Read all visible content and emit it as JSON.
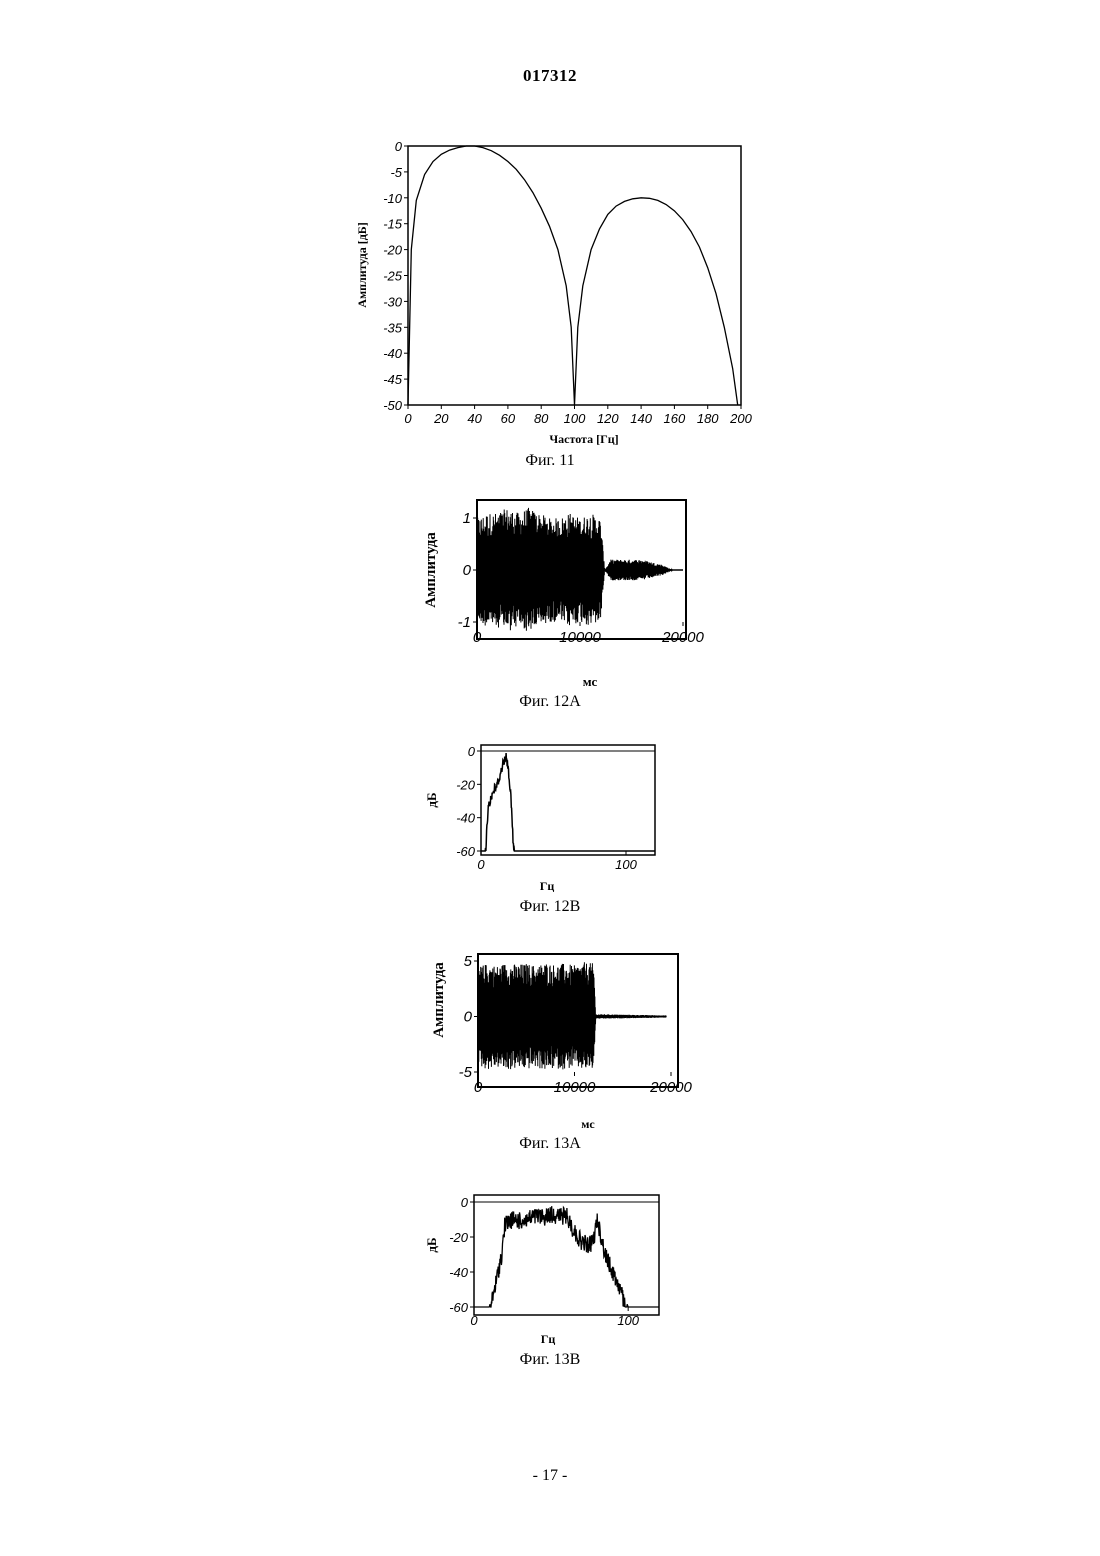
{
  "header": {
    "doc_number": "017312"
  },
  "footer": {
    "page_number": "- 17 -"
  },
  "figures": [
    {
      "caption": "Фиг. 11"
    },
    {
      "caption": "Фиг. 12А"
    },
    {
      "caption": "Фиг. 12В"
    },
    {
      "caption": "Фиг. 13А"
    },
    {
      "caption": "Фиг. 13В"
    }
  ],
  "chart_data": [
    {
      "type": "line",
      "xlabel": "Частота [Гц]",
      "ylabel": "Амплитуда [дБ]",
      "xlim": [
        0,
        200
      ],
      "ylim": [
        -50,
        0
      ],
      "xticks": [
        0,
        20,
        40,
        60,
        80,
        100,
        120,
        140,
        160,
        180,
        200
      ],
      "yticks": [
        0,
        -5,
        -10,
        -15,
        -20,
        -25,
        -30,
        -35,
        -40,
        -45,
        -50
      ],
      "x": [
        0,
        2,
        5,
        10,
        15,
        20,
        25,
        30,
        35,
        40,
        45,
        50,
        55,
        60,
        65,
        70,
        75,
        80,
        85,
        90,
        95,
        98,
        100,
        102,
        105,
        110,
        115,
        120,
        125,
        130,
        135,
        140,
        145,
        150,
        155,
        160,
        165,
        170,
        175,
        180,
        185,
        190,
        195,
        198
      ],
      "y": [
        -50,
        -20,
        -10.5,
        -5.5,
        -3,
        -1.6,
        -0.8,
        -0.3,
        0,
        0,
        -0.3,
        -0.9,
        -1.8,
        -3,
        -4.5,
        -6.5,
        -9,
        -12,
        -15.5,
        -20,
        -27,
        -35,
        -50,
        -35,
        -27,
        -20,
        -16,
        -13.2,
        -11.6,
        -10.7,
        -10.2,
        -10,
        -10.1,
        -10.5,
        -11.3,
        -12.5,
        -14.2,
        -16.5,
        -19.5,
        -23.5,
        -28.5,
        -35,
        -43,
        -50
      ]
    },
    {
      "type": "line",
      "xlabel": "мс",
      "ylabel": "Амплитуда",
      "xlim": [
        0,
        20000
      ],
      "ylim": [
        -1,
        1
      ],
      "xticks": [
        0,
        10000,
        20000
      ],
      "yticks": [
        1,
        0,
        -1
      ],
      "envelope_x": [
        0,
        1000,
        2000,
        3000,
        4000,
        5000,
        6000,
        7000,
        8000,
        9000,
        10000,
        11000,
        12000,
        12400,
        13000,
        14000,
        15000,
        16000,
        17000,
        18000,
        19000,
        20000
      ],
      "envelope_y": [
        1.0,
        1.1,
        1.1,
        1.2,
        1.1,
        1.2,
        1.1,
        1.0,
        1.0,
        1.1,
        1.0,
        1.1,
        1.0,
        0.0,
        0.2,
        0.2,
        0.2,
        0.2,
        0.15,
        0.1,
        0.0,
        0.0
      ]
    },
    {
      "type": "line",
      "xlabel": "Гц",
      "ylabel": "дБ",
      "xlim": [
        0,
        120
      ],
      "ylim": [
        -60,
        0
      ],
      "xticks": [
        0,
        100
      ],
      "yticks": [
        0,
        -20,
        -40,
        -60
      ],
      "x": [
        0,
        3,
        5,
        7,
        9,
        11,
        13,
        15,
        17,
        19,
        21,
        22,
        23,
        25,
        50,
        80,
        120
      ],
      "y": [
        -60,
        -60,
        -30,
        -25,
        -20,
        -18,
        -12,
        -5,
        0,
        -8,
        -30,
        -50,
        -60,
        -60,
        -60,
        -60,
        -60
      ]
    },
    {
      "type": "line",
      "xlabel": "мс",
      "ylabel": "Амплитуда",
      "xlim": [
        0,
        20000
      ],
      "ylim": [
        -5,
        5
      ],
      "xticks": [
        0,
        10000,
        20000
      ],
      "yticks": [
        5,
        0,
        -5
      ],
      "envelope_x": [
        0,
        1000,
        2000,
        3000,
        4000,
        5000,
        6000,
        7000,
        8000,
        9000,
        10000,
        11000,
        12000,
        12200,
        13000,
        16000,
        19500
      ],
      "envelope_y": [
        4.5,
        4.8,
        4.6,
        4.9,
        4.7,
        4.8,
        4.6,
        4.9,
        4.7,
        4.8,
        4.6,
        4.9,
        4.8,
        0.2,
        0.2,
        0.15,
        0.1
      ]
    },
    {
      "type": "line",
      "xlabel": "Гц",
      "ylabel": "дБ",
      "xlim": [
        0,
        120
      ],
      "ylim": [
        -60,
        0
      ],
      "xticks": [
        0,
        100
      ],
      "yticks": [
        0,
        -20,
        -40,
        -60
      ],
      "x": [
        0,
        5,
        10,
        12,
        15,
        18,
        20,
        25,
        30,
        35,
        40,
        45,
        50,
        55,
        60,
        65,
        70,
        75,
        78,
        80,
        85,
        90,
        95,
        98,
        100,
        105,
        110,
        120
      ],
      "y": [
        -60,
        -60,
        -60,
        -50,
        -38,
        -25,
        -8,
        -5,
        -6,
        -5,
        -3,
        -4,
        -2,
        -3,
        -3,
        -12,
        -18,
        -20,
        -15,
        -5,
        -25,
        -35,
        -45,
        -55,
        -60,
        -60,
        -60,
        -60
      ]
    }
  ]
}
